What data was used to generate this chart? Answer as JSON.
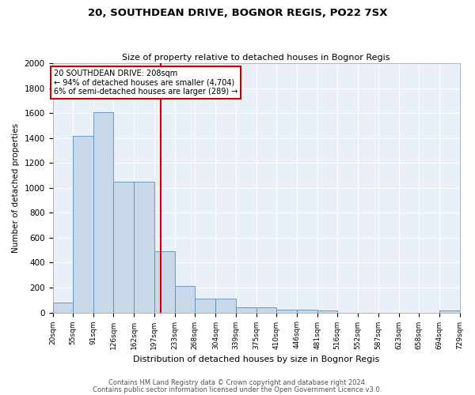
{
  "title": "20, SOUTHDEAN DRIVE, BOGNOR REGIS, PO22 7SX",
  "subtitle": "Size of property relative to detached houses in Bognor Regis",
  "xlabel": "Distribution of detached houses by size in Bognor Regis",
  "ylabel": "Number of detached properties",
  "footnote1": "Contains HM Land Registry data © Crown copyright and database right 2024.",
  "footnote2": "Contains public sector information licensed under the Open Government Licence v3.0.",
  "annotation_line1": "20 SOUTHDEAN DRIVE: 208sqm",
  "annotation_line2": "← 94% of detached houses are smaller (4,704)",
  "annotation_line3": "6% of semi-detached houses are larger (289) →",
  "bar_left_edges": [
    20,
    55,
    91,
    126,
    162,
    197,
    233,
    268,
    304,
    339,
    375,
    410,
    446,
    481,
    516,
    552,
    587,
    623,
    658,
    694
  ],
  "bar_right_edges": [
    55,
    91,
    126,
    162,
    197,
    233,
    268,
    304,
    339,
    375,
    410,
    446,
    481,
    516,
    552,
    587,
    623,
    658,
    694,
    729
  ],
  "bar_heights": [
    80,
    1420,
    1610,
    1050,
    1050,
    490,
    210,
    110,
    110,
    40,
    40,
    25,
    25,
    15,
    0,
    0,
    0,
    0,
    0,
    15
  ],
  "bar_color": "#c8d8e8",
  "bar_edgecolor": "#5b8db8",
  "marker_x": 208,
  "marker_color": "#cc0000",
  "bg_color": "#eaf0f8",
  "annotation_box_color": "#cc0000",
  "ylim": [
    0,
    2000
  ],
  "yticks": [
    0,
    200,
    400,
    600,
    800,
    1000,
    1200,
    1400,
    1600,
    1800,
    2000
  ],
  "xtick_labels": [
    "20sqm",
    "55sqm",
    "91sqm",
    "126sqm",
    "162sqm",
    "197sqm",
    "233sqm",
    "268sqm",
    "304sqm",
    "339sqm",
    "375sqm",
    "410sqm",
    "446sqm",
    "481sqm",
    "516sqm",
    "552sqm",
    "587sqm",
    "623sqm",
    "658sqm",
    "694sqm",
    "729sqm"
  ],
  "xmin": 20,
  "xmax": 729
}
